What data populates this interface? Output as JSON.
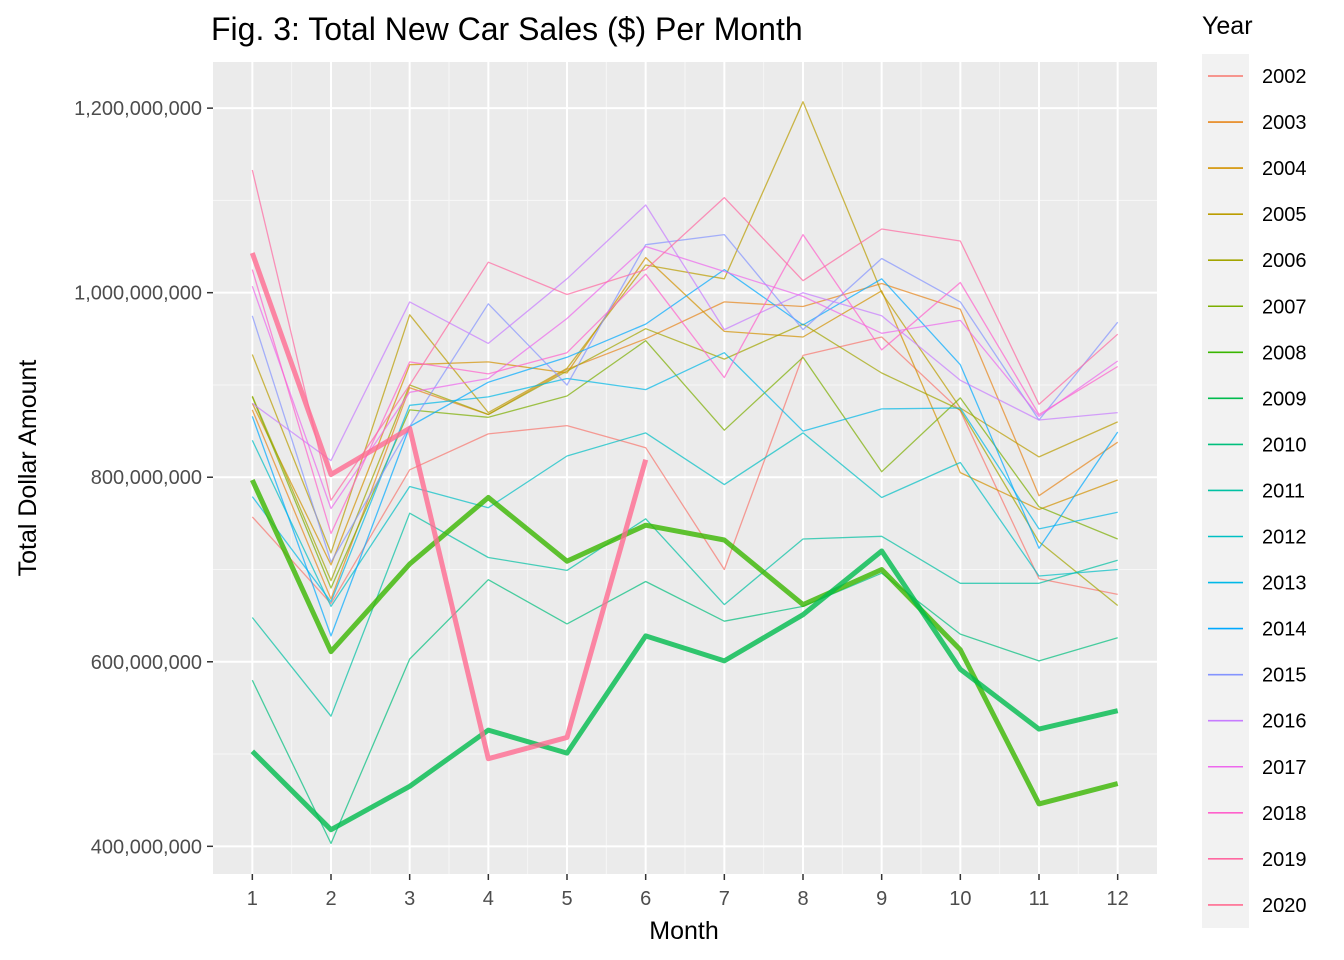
{
  "chart_data": {
    "type": "line",
    "title": "Fig. 3: Total New Car Sales ($) Per Month",
    "xlabel": "Month",
    "ylabel": "Total Dollar Amount",
    "x": [
      1,
      2,
      3,
      4,
      5,
      6,
      7,
      8,
      9,
      10,
      11,
      12
    ],
    "x_tick_labels": [
      "1",
      "2",
      "3",
      "4",
      "5",
      "6",
      "7",
      "8",
      "9",
      "10",
      "11",
      "12"
    ],
    "xlim": [
      0.5,
      12.5
    ],
    "ylim": [
      370000000,
      1250000000
    ],
    "y_ticks": [
      400000000,
      600000000,
      800000000,
      1000000000,
      1200000000
    ],
    "y_tick_labels": [
      "400,000,000",
      "600,000,000",
      "800,000,000",
      "1,000,000,000",
      "1,200,000,000"
    ],
    "grid": true,
    "legend": {
      "title": "Year",
      "position": "right"
    },
    "series": [
      {
        "name": "2002",
        "color": "#F8766D",
        "width": 1,
        "values": [
          757000000,
          663000000,
          808000000,
          847000000,
          856000000,
          832000000,
          700000000,
          932000000,
          952000000,
          872000000,
          690000000,
          673000000
        ]
      },
      {
        "name": "2003",
        "color": "#E7861B",
        "width": 1,
        "values": [
          873000000,
          668000000,
          897000000,
          868000000,
          917000000,
          950000000,
          990000000,
          985000000,
          1010000000,
          982000000,
          780000000,
          838000000
        ]
      },
      {
        "name": "2004",
        "color": "#D39200",
        "width": 1,
        "values": [
          880000000,
          705000000,
          922000000,
          925000000,
          913000000,
          1038000000,
          958000000,
          952000000,
          1002000000,
          805000000,
          765000000,
          797000000
        ]
      },
      {
        "name": "2005",
        "color": "#BB9D00",
        "width": 1,
        "values": [
          933000000,
          718000000,
          976000000,
          870000000,
          918000000,
          1030000000,
          1015000000,
          1207000000,
          1000000000,
          875000000,
          822000000,
          860000000
        ]
      },
      {
        "name": "2006",
        "color": "#A3A500",
        "width": 1,
        "values": [
          888000000,
          688000000,
          900000000,
          868000000,
          915000000,
          961000000,
          928000000,
          966000000,
          913000000,
          873000000,
          730000000,
          661000000
        ]
      },
      {
        "name": "2007",
        "color": "#7CAE00",
        "width": 1,
        "values": [
          887000000,
          680000000,
          873000000,
          865000000,
          888000000,
          948000000,
          851000000,
          930000000,
          806000000,
          886000000,
          768000000,
          733000000
        ]
      },
      {
        "name": "2008",
        "color": "#39B600",
        "width": 3,
        "values": [
          797000000,
          611000000,
          706000000,
          778000000,
          709000000,
          748000000,
          732000000,
          662000000,
          700000000,
          613000000,
          446000000,
          468000000
        ]
      },
      {
        "name": "2009",
        "color": "#00BB4E",
        "width": 3,
        "values": [
          503000000,
          418000000,
          465000000,
          526000000,
          501000000,
          628000000,
          601000000,
          651000000,
          720000000,
          592000000,
          527000000,
          547000000
        ]
      },
      {
        "name": "2010",
        "color": "#00BF7D",
        "width": 1,
        "values": [
          580000000,
          403000000,
          603000000,
          689000000,
          641000000,
          687000000,
          644000000,
          660000000,
          696000000,
          630000000,
          601000000,
          626000000
        ]
      },
      {
        "name": "2011",
        "color": "#00C1A3",
        "width": 1,
        "values": [
          648000000,
          541000000,
          761000000,
          713000000,
          699000000,
          755000000,
          662000000,
          733000000,
          736000000,
          685000000,
          685000000,
          710000000
        ]
      },
      {
        "name": "2012",
        "color": "#00BFC4",
        "width": 1,
        "values": [
          840000000,
          660000000,
          790000000,
          767000000,
          823000000,
          848000000,
          792000000,
          848000000,
          778000000,
          816000000,
          693000000,
          700000000
        ]
      },
      {
        "name": "2013",
        "color": "#00B8E7",
        "width": 1,
        "values": [
          779000000,
          665000000,
          878000000,
          887000000,
          907000000,
          895000000,
          935000000,
          850000000,
          874000000,
          875000000,
          744000000,
          762000000
        ]
      },
      {
        "name": "2014",
        "color": "#00A9FF",
        "width": 1,
        "values": [
          866000000,
          628000000,
          855000000,
          903000000,
          930000000,
          966000000,
          1025000000,
          965000000,
          1015000000,
          922000000,
          723000000,
          849000000
        ]
      },
      {
        "name": "2015",
        "color": "#8494FF",
        "width": 1,
        "values": [
          975000000,
          708000000,
          855000000,
          988000000,
          900000000,
          1052000000,
          1063000000,
          960000000,
          1037000000,
          990000000,
          862000000,
          968000000
        ]
      },
      {
        "name": "2016",
        "color": "#C77CFF",
        "width": 1,
        "values": [
          880000000,
          818000000,
          990000000,
          945000000,
          1015000000,
          1095000000,
          960000000,
          1000000000,
          975000000,
          905000000,
          862000000,
          870000000
        ]
      },
      {
        "name": "2017",
        "color": "#ED68ED",
        "width": 1,
        "values": [
          1007000000,
          766000000,
          892000000,
          907000000,
          972000000,
          1050000000,
          1023000000,
          996000000,
          956000000,
          970000000,
          866000000,
          926000000
        ]
      },
      {
        "name": "2018",
        "color": "#FF61CC",
        "width": 1,
        "values": [
          1025000000,
          739000000,
          925000000,
          912000000,
          935000000,
          1020000000,
          908000000,
          1063000000,
          938000000,
          1011000000,
          868000000,
          920000000
        ]
      },
      {
        "name": "2019",
        "color": "#FF68A1",
        "width": 1,
        "values": [
          1133000000,
          775000000,
          900000000,
          1033000000,
          998000000,
          1025000000,
          1103000000,
          1013000000,
          1069000000,
          1056000000,
          879000000,
          955000000
        ]
      },
      {
        "name": "2020",
        "color": "#FF6C91",
        "width": 3,
        "values": [
          1043000000,
          803000000,
          853000000,
          495000000,
          518000000,
          819000000,
          null,
          null,
          null,
          null,
          null,
          null
        ]
      }
    ]
  }
}
